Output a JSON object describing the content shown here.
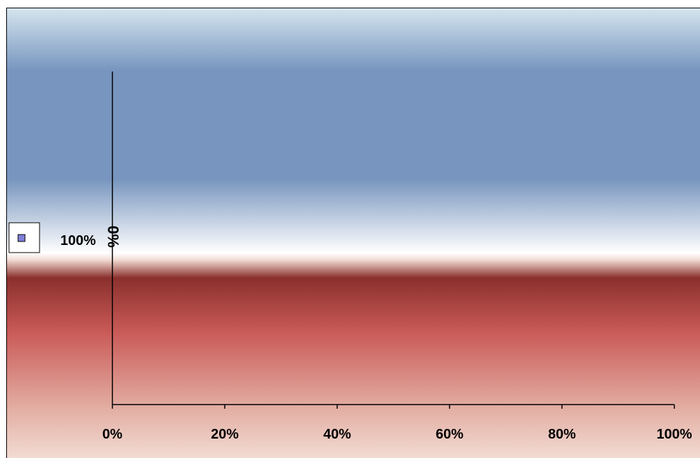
{
  "chart_data": {
    "type": "bar",
    "orientation": "horizontal",
    "stacked": "percent",
    "categories": [
      "100%"
    ],
    "series": [
      {
        "values": [
          0
        ]
      }
    ],
    "data_labels": [
      "0%"
    ],
    "xlim": [
      0,
      1
    ],
    "xticks": [
      "0%",
      "20%",
      "40%",
      "60%",
      "80%",
      "100%"
    ],
    "grid": false,
    "legend_position": "left",
    "colors": {
      "series": "#7F7FD9",
      "sky_top": "#D6E6F0",
      "sky_mid": "#7795BE",
      "sky_horizon": "#FFFFFF",
      "ground_dark": "#8A302D",
      "ground_mid": "#C95A57",
      "ground_light": "#F2DBD3",
      "axis": "#000000",
      "border": "#000000"
    }
  }
}
